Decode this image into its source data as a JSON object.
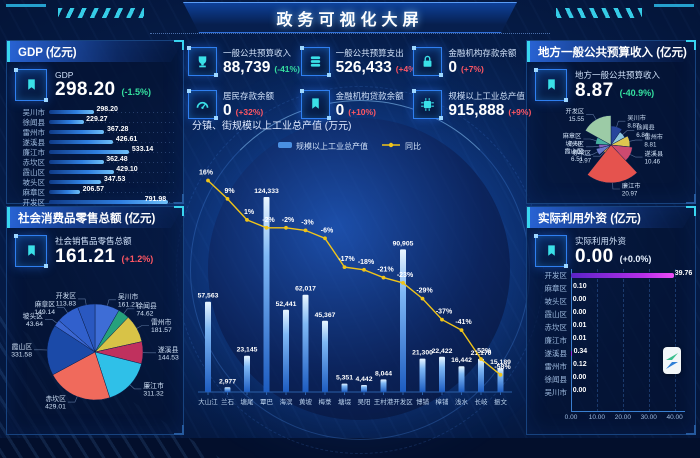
{
  "header": {
    "title": "政务可视化大屏"
  },
  "colors": {
    "rise": "#ff5663",
    "fall": "#35e0a0",
    "flat": "#e8f2ff",
    "accent_cyan": "#39d6f0",
    "bar_blue": "#4a90e2",
    "line_yellow": "#f0c419",
    "foreign_bar": "#c62ee8"
  },
  "panels": {
    "gdp": {
      "title": "GDP (亿元)",
      "icon": "award",
      "stat_label": "GDP",
      "stat_value": "298.20",
      "stat_change": "(-1.5%)",
      "trend": "down"
    },
    "retail": {
      "title": "社会消费品零售总额 (亿元)",
      "icon": "award",
      "stat_label": "社会销售品零售总额",
      "stat_value": "161.21",
      "stat_change": "(+1.2%)",
      "trend": "up"
    },
    "budget": {
      "title": "地方一般公共预算收入 (亿元)",
      "icon": "award",
      "stat_label": "地方一般公共预算收入",
      "stat_value": "8.87",
      "stat_change": "(-40.9%)",
      "trend": "down"
    },
    "foreign": {
      "title": "实际利用外资 (亿元)",
      "icon": "award",
      "stat_label": "实际利用外资",
      "stat_value": "0.00",
      "stat_change": "(+0.0%)",
      "trend": "flat"
    },
    "industry": {
      "title": "分镇、街规模以上工业总产值 (万元)",
      "legend": [
        "规模以上工业总产值",
        "同比"
      ]
    },
    "kpis": [
      {
        "label": "一般公共预算收入",
        "value": "88,739",
        "change": "(-41%)",
        "trend": "down",
        "icon": "cup"
      },
      {
        "label": "一般公共预算支出",
        "value": "526,433",
        "change": "(+4%)",
        "trend": "up",
        "icon": "coins"
      },
      {
        "label": "金融机构存款余额",
        "value": "0",
        "change": "(+7%)",
        "trend": "up",
        "icon": "lock"
      },
      {
        "label": "居民存款余额",
        "value": "0",
        "change": "(+32%)",
        "trend": "up",
        "icon": "gauge"
      },
      {
        "label": "金融机构贷款余额",
        "value": "0",
        "change": "(+10%)",
        "trend": "up",
        "icon": "award"
      },
      {
        "label": "规模以上工业总产值",
        "value": "915,888",
        "change": "(+9%)",
        "trend": "up",
        "icon": "chip"
      }
    ]
  },
  "chart_data": [
    {
      "id": "gdp-by-district",
      "type": "bar",
      "orientation": "horizontal",
      "categories": [
        "吴川市",
        "徐闻县",
        "雷州市",
        "遂溪县",
        "廉江市",
        "赤坎区",
        "霞山区",
        "坡头区",
        "麻章区",
        "开发区"
      ],
      "values": [
        298.2,
        229.27,
        367.28,
        426.61,
        533.14,
        362.48,
        429.1,
        347.53,
        206.57,
        791.98
      ],
      "value_labels": [
        "298.20",
        "229.27",
        "367.28",
        "426.61",
        "533.14",
        "362.48",
        "429.10",
        "347.53",
        "206.57",
        "791.98"
      ],
      "xlim": [
        0,
        835
      ]
    },
    {
      "id": "retail-by-district",
      "type": "pie",
      "slices": [
        {
          "name": "吴川市",
          "value": 161.21,
          "color": "#3e6dd6"
        },
        {
          "name": "徐闻县",
          "value": 74.62,
          "color": "#26a17c"
        },
        {
          "name": "雷州市",
          "value": 181.57,
          "color": "#d8c347"
        },
        {
          "name": "遂溪县",
          "value": 144.53,
          "color": "#c0315e"
        },
        {
          "name": "廉江市",
          "value": 311.32,
          "color": "#2fc0e8"
        },
        {
          "name": "赤坎区",
          "value": 429.01,
          "color": "#f06a5c"
        },
        {
          "name": "霞山区",
          "value": 331.58,
          "color": "#1b4aa8"
        },
        {
          "name": "坡头区",
          "value": 43.64,
          "color": "#3b67d2"
        },
        {
          "name": "麻章区",
          "value": 149.14,
          "color": "#3160cc"
        },
        {
          "name": "开发区",
          "value": 113.83,
          "color": "#2a58c0"
        }
      ]
    },
    {
      "id": "industry-by-town",
      "type": "bar+line",
      "title": "分镇、街规模以上工业总产值 (万元)",
      "categories": [
        "大山江",
        "兰石",
        "塘尾",
        "覃巴",
        "海滨",
        "黄坡",
        "梅菉",
        "塘㙍",
        "吴阳",
        "王村港",
        "开发区",
        "博铺",
        "樟铺",
        "浅水",
        "长岐",
        "振文"
      ],
      "ylim": [
        0,
        130000
      ],
      "series": [
        {
          "name": "规模以上工业总产值",
          "type": "bar",
          "values": [
            57563,
            2977,
            23145,
            124333,
            52441,
            62017,
            45367,
            5351,
            4442,
            8044,
            90905,
            21300,
            22422,
            16442,
            21170,
            15189
          ],
          "value_labels": [
            "57,563",
            "2,977",
            "23,145",
            "124,333",
            "52,441",
            "62,017",
            "45,367",
            "5,351",
            "4,442",
            "8,044",
            "90,905",
            "21,300",
            "22,422",
            "16,442",
            "21,170",
            "15,189"
          ]
        },
        {
          "name": "同比",
          "type": "line",
          "axis_range": [
            20,
            -60
          ],
          "values": [
            16,
            9,
            1,
            -2,
            -2,
            -3,
            -6,
            -17,
            -18,
            -21,
            -23,
            -29,
            -37,
            -41,
            -52,
            -58
          ],
          "value_labels": [
            "16%",
            "9%",
            "1%",
            "-2%",
            "-2%",
            "-3%",
            "-6%",
            "-17%",
            "-18%",
            "-21%",
            "-23%",
            "-29%",
            "-37%",
            "-41%",
            "-52%",
            "-58%"
          ]
        }
      ]
    },
    {
      "id": "budget-by-district",
      "type": "pie",
      "rose": true,
      "slices": [
        {
          "name": "吴川市",
          "value": 8.87,
          "color": "#27459c"
        },
        {
          "name": "徐闻县",
          "value": 6.84,
          "color": "#8ec6de"
        },
        {
          "name": "雷州市",
          "value": 8.81,
          "color": "#dec64f"
        },
        {
          "name": "遂溪县",
          "value": 10.46,
          "color": "#cc4a70"
        },
        {
          "name": "廉江市",
          "value": 20.97,
          "color": "#e5534e"
        },
        {
          "name": "赤坎区",
          "value": 2.97,
          "color": "#e0953f"
        },
        {
          "name": "霞山区",
          "value": 6.51,
          "color": "#6a79c9"
        },
        {
          "name": "坡头区",
          "value": 4.53,
          "color": "#8a5fb8"
        },
        {
          "name": "麻章区",
          "value": 6.68,
          "color": "#47b0a0"
        },
        {
          "name": "开发区",
          "value": 15.55,
          "color": "#9ccba6"
        }
      ]
    },
    {
      "id": "foreign-investment-by-district",
      "type": "bar",
      "orientation": "horizontal",
      "categories": [
        "开发区",
        "麻章区",
        "坡头区",
        "霞山区",
        "赤坎区",
        "廉江市",
        "遂溪县",
        "雷州市",
        "徐闻县",
        "吴川市"
      ],
      "values": [
        39.76,
        0.1,
        0.0,
        0.0,
        0.01,
        0.01,
        0.34,
        0.12,
        0.0,
        0.0
      ],
      "value_labels": [
        "39.76",
        "0.10",
        "0.00",
        "0.00",
        "0.01",
        "0.01",
        "0.34",
        "0.12",
        "0.00",
        "0.00"
      ],
      "x_ticks": [
        "0.00",
        "10.00",
        "20.00",
        "30.00",
        "40.00"
      ],
      "x_tick_values": [
        0,
        10,
        20,
        30,
        40
      ],
      "xlim": [
        0,
        44
      ]
    }
  ]
}
